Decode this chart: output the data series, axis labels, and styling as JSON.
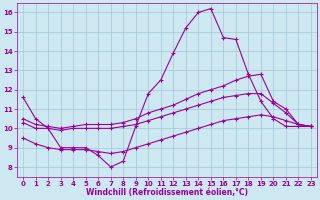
{
  "background_color": "#cde8f0",
  "grid_color": "#a0c8d8",
  "line_color": "#990099",
  "xlim": [
    -0.5,
    23.5
  ],
  "ylim": [
    7.5,
    16.5
  ],
  "xticks": [
    0,
    1,
    2,
    3,
    4,
    5,
    6,
    7,
    8,
    9,
    10,
    11,
    12,
    13,
    14,
    15,
    16,
    17,
    18,
    19,
    20,
    21,
    22,
    23
  ],
  "yticks": [
    8,
    9,
    10,
    11,
    12,
    13,
    14,
    15,
    16
  ],
  "xlabel": "Windchill (Refroidissement éolien,°C)",
  "series": [
    {
      "x": [
        0,
        1,
        2,
        3,
        4,
        5,
        6,
        7,
        8,
        9,
        10,
        11,
        12,
        13,
        14,
        15,
        16,
        17,
        18,
        19,
        20,
        21,
        22,
        23
      ],
      "y": [
        11.6,
        10.5,
        10.0,
        9.0,
        9.0,
        9.0,
        8.6,
        8.0,
        8.3,
        10.1,
        11.8,
        12.5,
        13.9,
        15.2,
        16.0,
        16.2,
        14.7,
        14.6,
        12.8,
        11.4,
        10.5,
        10.1,
        10.1,
        10.1
      ]
    },
    {
      "x": [
        0,
        1,
        2,
        3,
        4,
        5,
        6,
        7,
        8,
        9,
        10,
        11,
        12,
        13,
        14,
        15,
        16,
        17,
        18,
        19,
        20,
        21,
        22,
        23
      ],
      "y": [
        10.5,
        10.2,
        10.1,
        10.0,
        10.1,
        10.2,
        10.2,
        10.2,
        10.3,
        10.5,
        10.8,
        11.0,
        11.2,
        11.5,
        11.8,
        12.0,
        12.2,
        12.5,
        12.7,
        12.8,
        11.4,
        11.0,
        10.2,
        10.1
      ]
    },
    {
      "x": [
        0,
        1,
        2,
        3,
        4,
        5,
        6,
        7,
        8,
        9,
        10,
        11,
        12,
        13,
        14,
        15,
        16,
        17,
        18,
        19,
        20,
        21,
        22,
        23
      ],
      "y": [
        10.3,
        10.0,
        10.0,
        9.9,
        10.0,
        10.0,
        10.0,
        10.0,
        10.1,
        10.2,
        10.4,
        10.6,
        10.8,
        11.0,
        11.2,
        11.4,
        11.6,
        11.7,
        11.8,
        11.8,
        11.3,
        10.8,
        10.2,
        10.1
      ]
    },
    {
      "x": [
        0,
        1,
        2,
        3,
        4,
        5,
        6,
        7,
        8,
        9,
        10,
        11,
        12,
        13,
        14,
        15,
        16,
        17,
        18,
        19,
        20,
        21,
        22,
        23
      ],
      "y": [
        9.5,
        9.2,
        9.0,
        8.9,
        8.9,
        8.9,
        8.8,
        8.7,
        8.8,
        9.0,
        9.2,
        9.4,
        9.6,
        9.8,
        10.0,
        10.2,
        10.4,
        10.5,
        10.6,
        10.7,
        10.6,
        10.4,
        10.2,
        10.1
      ]
    }
  ],
  "marker": "+",
  "markersize": 3,
  "linewidth": 0.8,
  "tick_fontsize": 5,
  "label_fontsize": 5.5
}
